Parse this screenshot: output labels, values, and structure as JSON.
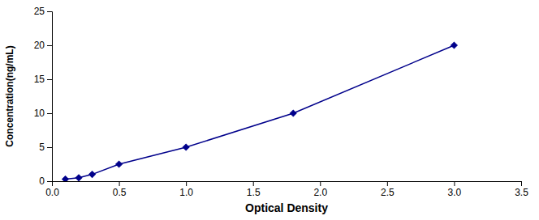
{
  "chart_data": {
    "type": "line",
    "x": [
      0.1,
      0.2,
      0.3,
      0.5,
      1.0,
      1.8,
      3.0
    ],
    "values": [
      0.3,
      0.5,
      1.0,
      2.5,
      5.0,
      10.0,
      20.0
    ],
    "xlabel": "Optical Density",
    "ylabel": "Concentration(ng/mL)",
    "xlim": [
      0,
      3.5
    ],
    "ylim": [
      0,
      25
    ],
    "xticks": [
      {
        "value": 0,
        "label": "0.0"
      },
      0.5,
      {
        "value": 1.0,
        "label": "1.0"
      },
      1.5,
      {
        "value": 2.0,
        "label": "2.0"
      },
      2.5,
      {
        "value": 3.0,
        "label": "3.0"
      },
      3.5
    ],
    "yticks": [
      0,
      5,
      10,
      15,
      20,
      25
    ],
    "color": "#00008B",
    "marker": "diamond",
    "grid": false
  }
}
